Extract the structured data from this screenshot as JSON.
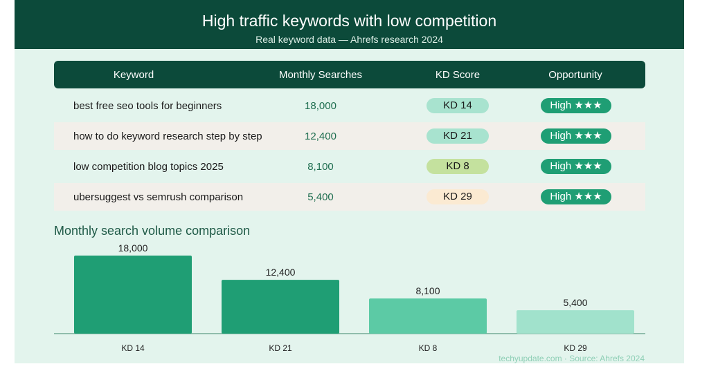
{
  "header": {
    "title": "High traffic keywords with low competition",
    "subtitle": "Real keyword data — Ahrefs research 2024"
  },
  "table": {
    "columns": [
      "Keyword",
      "Monthly Searches",
      "KD Score",
      "Opportunity"
    ],
    "rows": [
      {
        "keyword": "best free seo tools for beginners",
        "searches": "18,000",
        "kd": "KD 14",
        "opportunity": "High ★★★"
      },
      {
        "keyword": "how to do keyword research step by step",
        "searches": "12,400",
        "kd": "KD 21",
        "opportunity": "High ★★★"
      },
      {
        "keyword": "low competition blog topics 2025",
        "searches": "8,100",
        "kd": "KD 8",
        "opportunity": "High ★★★"
      },
      {
        "keyword": "ubersuggest vs semrush comparison",
        "searches": "5,400",
        "kd": "KD 29",
        "opportunity": "High ★★★"
      }
    ]
  },
  "chart_data": {
    "type": "bar",
    "title": "Monthly search volume comparison",
    "categories": [
      "KD 14",
      "KD 21",
      "KD 8",
      "KD 29"
    ],
    "values": [
      18000,
      12400,
      8100,
      5400
    ],
    "value_labels": [
      "18,000",
      "12,400",
      "8,100",
      "5,400"
    ],
    "colors": [
      "#1f9e74",
      "#1f9e74",
      "#5ccaa5",
      "#a1e2cc"
    ],
    "ylim": [
      0,
      18000
    ],
    "grid": false,
    "legend": "none"
  },
  "footer": {
    "source": "techyupdate.com · Source: Ahrefs 2024"
  }
}
